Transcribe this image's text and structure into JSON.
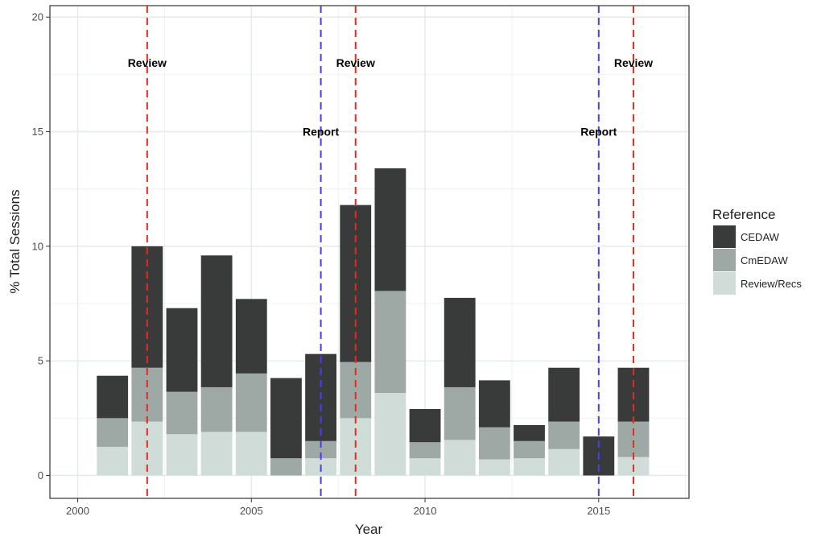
{
  "chart_data": {
    "type": "bar",
    "stacked": true,
    "xlabel": "Year",
    "ylabel": "% Total Sessions",
    "xlim": [
      1999.2,
      2017.6
    ],
    "ylim": [
      -1,
      20.5
    ],
    "x_ticks": [
      2000,
      2005,
      2010,
      2015
    ],
    "y_ticks": [
      0,
      5,
      10,
      15,
      20
    ],
    "grid": true,
    "legend": {
      "title": "Reference",
      "position": "right"
    },
    "x": [
      2001,
      2002,
      2003,
      2004,
      2005,
      2006,
      2007,
      2008,
      2009,
      2010,
      2011,
      2012,
      2013,
      2014,
      2015,
      2016
    ],
    "series": [
      {
        "name": "Review/Recs",
        "color": "#d0dcd7",
        "values": [
          1.25,
          2.35,
          1.8,
          1.9,
          1.9,
          0,
          0.75,
          2.5,
          3.6,
          0.75,
          1.55,
          0.7,
          0.75,
          1.15,
          0,
          0.8
        ]
      },
      {
        "name": "CmEDAW",
        "color": "#9ea8a4",
        "values": [
          1.25,
          2.35,
          1.85,
          1.95,
          2.55,
          0.75,
          0.75,
          2.45,
          4.45,
          0.7,
          2.3,
          1.4,
          0.75,
          1.2,
          0,
          1.55
        ]
      },
      {
        "name": "CEDAW",
        "color": "#383b39",
        "values": [
          1.85,
          5.3,
          3.65,
          5.75,
          3.25,
          3.5,
          3.8,
          6.85,
          5.35,
          1.45,
          3.9,
          2.05,
          0.7,
          2.35,
          1.7,
          2.35
        ]
      }
    ],
    "legend_order": [
      "CEDAW",
      "CmEDAW",
      "Review/Recs"
    ],
    "vlines": [
      {
        "x": 2002,
        "color": "#e8291f",
        "label": "Review",
        "label_y": 18
      },
      {
        "x": 2007,
        "color": "#4a3cf5",
        "label": "Report",
        "label_y": 15
      },
      {
        "x": 2008,
        "color": "#e8291f",
        "label": "Review",
        "label_y": 18
      },
      {
        "x": 2015,
        "color": "#4a3cf5",
        "label": "Report",
        "label_y": 15
      },
      {
        "x": 2016,
        "color": "#e8291f",
        "label": "Review",
        "label_y": 18
      }
    ]
  }
}
